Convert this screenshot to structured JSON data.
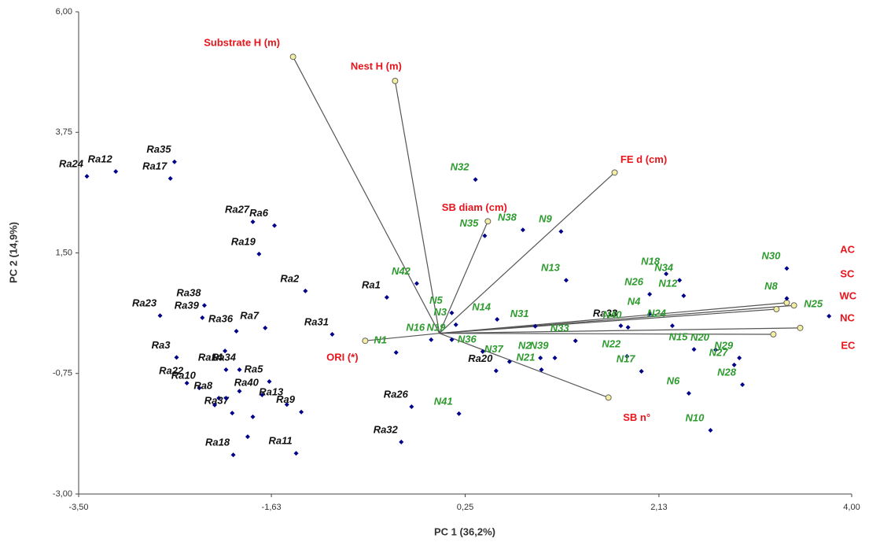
{
  "chart_data": {
    "type": "scatter",
    "x_label": "PC 1 (36,2%)",
    "y_label": "PC 2 (14,9%)",
    "xlim": [
      -3.5,
      4.0
    ],
    "ylim": [
      -3.0,
      6.0
    ],
    "xticks": [
      {
        "value": -3.5,
        "label": "-3,50"
      },
      {
        "value": -1.63,
        "label": "-1,63"
      },
      {
        "value": 0.25,
        "label": "0,25"
      },
      {
        "value": 2.13,
        "label": "2,13"
      },
      {
        "value": 4.0,
        "label": "4,00"
      }
    ],
    "yticks": [
      {
        "value": 6.0,
        "label": "6,00"
      },
      {
        "value": 3.75,
        "label": "3,75"
      },
      {
        "value": 1.5,
        "label": "1,50"
      },
      {
        "value": -0.75,
        "label": "-0,75"
      },
      {
        "value": -3.0,
        "label": "-3,00"
      }
    ],
    "series": [
      {
        "color": "#00008b",
        "label_color": "#111111",
        "labels": [
          "Ra12",
          "Ra24",
          "Ra35",
          "Ra17",
          "Ra27",
          "Ra6",
          "Ra19",
          "Ra2",
          "Ra1",
          "Ra23",
          "Ra39",
          "Ra38",
          "Ra36",
          "Ra7",
          "Ra31",
          "Ra3",
          "Ra14",
          "Ra34",
          "Ra5",
          "Ra22",
          "Ra10",
          "Ra8",
          "Ra40",
          "Ra13",
          "Ra9",
          "Ra37",
          "Ra18",
          "Ra11",
          "Ra26",
          "Ra32",
          "Ra20",
          "Ra33",
          null,
          null,
          null,
          null,
          null,
          null
        ],
        "x": [
          -3.14,
          -3.42,
          -2.57,
          -2.61,
          -1.81,
          -1.6,
          -1.75,
          -1.3,
          -0.51,
          -2.71,
          -2.3,
          -2.28,
          -1.97,
          -1.69,
          -1.04,
          -2.55,
          -2.07,
          -1.94,
          -1.65,
          -2.45,
          -2.33,
          -2.14,
          -1.72,
          -1.48,
          -1.34,
          -2.01,
          -2.0,
          -1.39,
          -0.27,
          -0.37,
          0.55,
          1.76,
          -2.08,
          -2.07,
          -2.18,
          -1.94,
          -1.81,
          -1.86
        ],
        "y": [
          3.02,
          2.93,
          3.2,
          2.89,
          2.08,
          2.01,
          1.48,
          0.79,
          0.67,
          0.33,
          0.29,
          0.52,
          0.04,
          0.1,
          -0.02,
          -0.45,
          -0.68,
          -0.68,
          -0.9,
          -0.93,
          -1.02,
          -1.21,
          -1.15,
          -1.33,
          -1.47,
          -1.49,
          -2.27,
          -2.24,
          -1.37,
          -2.03,
          -0.7,
          0.14,
          -0.33,
          -1.21,
          -1.34,
          -1.08,
          -1.56,
          -1.93
        ]
      },
      {
        "color": "#00008b",
        "label_color": "#2e9b2e",
        "labels": [
          "N32",
          "N38",
          "N9",
          "N35",
          "N42",
          "N13",
          "N18",
          "N26",
          "N34",
          "N4",
          "N12",
          "N30",
          "N8",
          "N25",
          "N5",
          "N14",
          "N31",
          "N3",
          "N40",
          "N24",
          "N1",
          "N16",
          "N19",
          "N36",
          "N37",
          "N2",
          "N39",
          "N33",
          "N22",
          "N15",
          "N20",
          "N29",
          "N27",
          "N17",
          "N6",
          "N28",
          "N10",
          "N21",
          "N41"
        ],
        "x": [
          0.35,
          0.81,
          1.18,
          0.44,
          -0.22,
          1.23,
          2.2,
          2.04,
          2.33,
          2.04,
          2.37,
          3.37,
          3.37,
          3.78,
          0.12,
          0.56,
          0.93,
          0.16,
          1.83,
          2.26,
          -0.42,
          -0.08,
          0.12,
          0.42,
          0.68,
          0.98,
          1.12,
          1.32,
          1.82,
          2.47,
          2.68,
          2.91,
          2.86,
          1.96,
          2.42,
          2.94,
          2.63,
          0.99,
          0.19
        ],
        "y": [
          2.87,
          1.93,
          1.9,
          1.82,
          0.93,
          0.99,
          1.11,
          0.73,
          0.99,
          0.36,
          0.7,
          1.21,
          0.65,
          0.32,
          0.38,
          0.26,
          0.13,
          0.16,
          0.11,
          0.14,
          -0.36,
          -0.12,
          -0.12,
          -0.34,
          -0.53,
          -0.46,
          -0.46,
          -0.14,
          -0.43,
          -0.3,
          -0.31,
          -0.46,
          -0.59,
          -0.71,
          -1.12,
          -0.96,
          -1.81,
          -0.68,
          -1.5
        ]
      }
    ],
    "vectors": {
      "color": "#555555",
      "marker_color": "#f3eea0",
      "label_color": "#e8141c",
      "labels": [
        "Substrate H (m)",
        "Nest H (m)",
        "FE d (cm)",
        "SB diam (cm)",
        "SB n°",
        "ORI (*)",
        "AC",
        "SC",
        "WC",
        "NC",
        "EC"
      ],
      "x": [
        -1.42,
        -0.43,
        1.7,
        0.47,
        1.64,
        -0.72,
        3.44,
        3.37,
        3.27,
        3.5,
        3.24
      ],
      "y": [
        5.16,
        4.71,
        3.0,
        2.09,
        -1.2,
        -0.14,
        0.52,
        0.57,
        0.45,
        0.1,
        -0.02
      ]
    }
  }
}
